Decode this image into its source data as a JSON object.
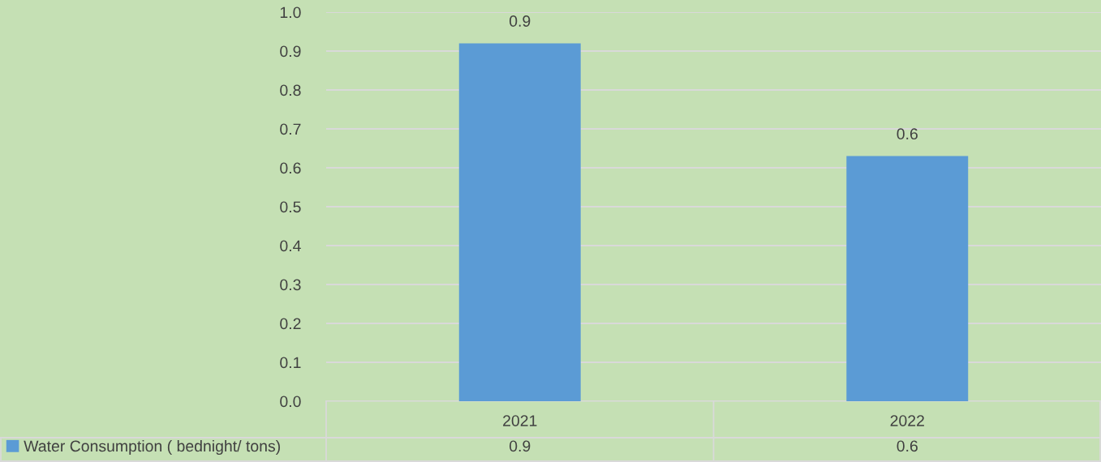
{
  "chart_data": {
    "type": "bar",
    "categories": [
      "2021",
      "2022"
    ],
    "series": [
      {
        "name": "Water Consumption ( bednight/ tons)",
        "color": "#5b9bd5",
        "values": [
          0.92,
          0.63
        ],
        "value_labels": [
          "0.9",
          "0.6"
        ]
      }
    ],
    "ylim": [
      0,
      1.0
    ],
    "yticks": [
      {
        "value": 0,
        "label": "0.0"
      },
      {
        "value": 0.1,
        "label": "0.1"
      },
      {
        "value": 0.2,
        "label": "0.2"
      },
      {
        "value": 0.3,
        "label": "0.3"
      },
      {
        "value": 0.4,
        "label": "0.4"
      },
      {
        "value": 0.5,
        "label": "0.5"
      },
      {
        "value": 0.6,
        "label": "0.6"
      },
      {
        "value": 0.7,
        "label": "0.7"
      },
      {
        "value": 0.8,
        "label": "0.8"
      },
      {
        "value": 0.9,
        "label": "0.9"
      },
      {
        "value": 1.0,
        "label": "1.0"
      }
    ],
    "grid": "y",
    "legend": "bottom left"
  }
}
